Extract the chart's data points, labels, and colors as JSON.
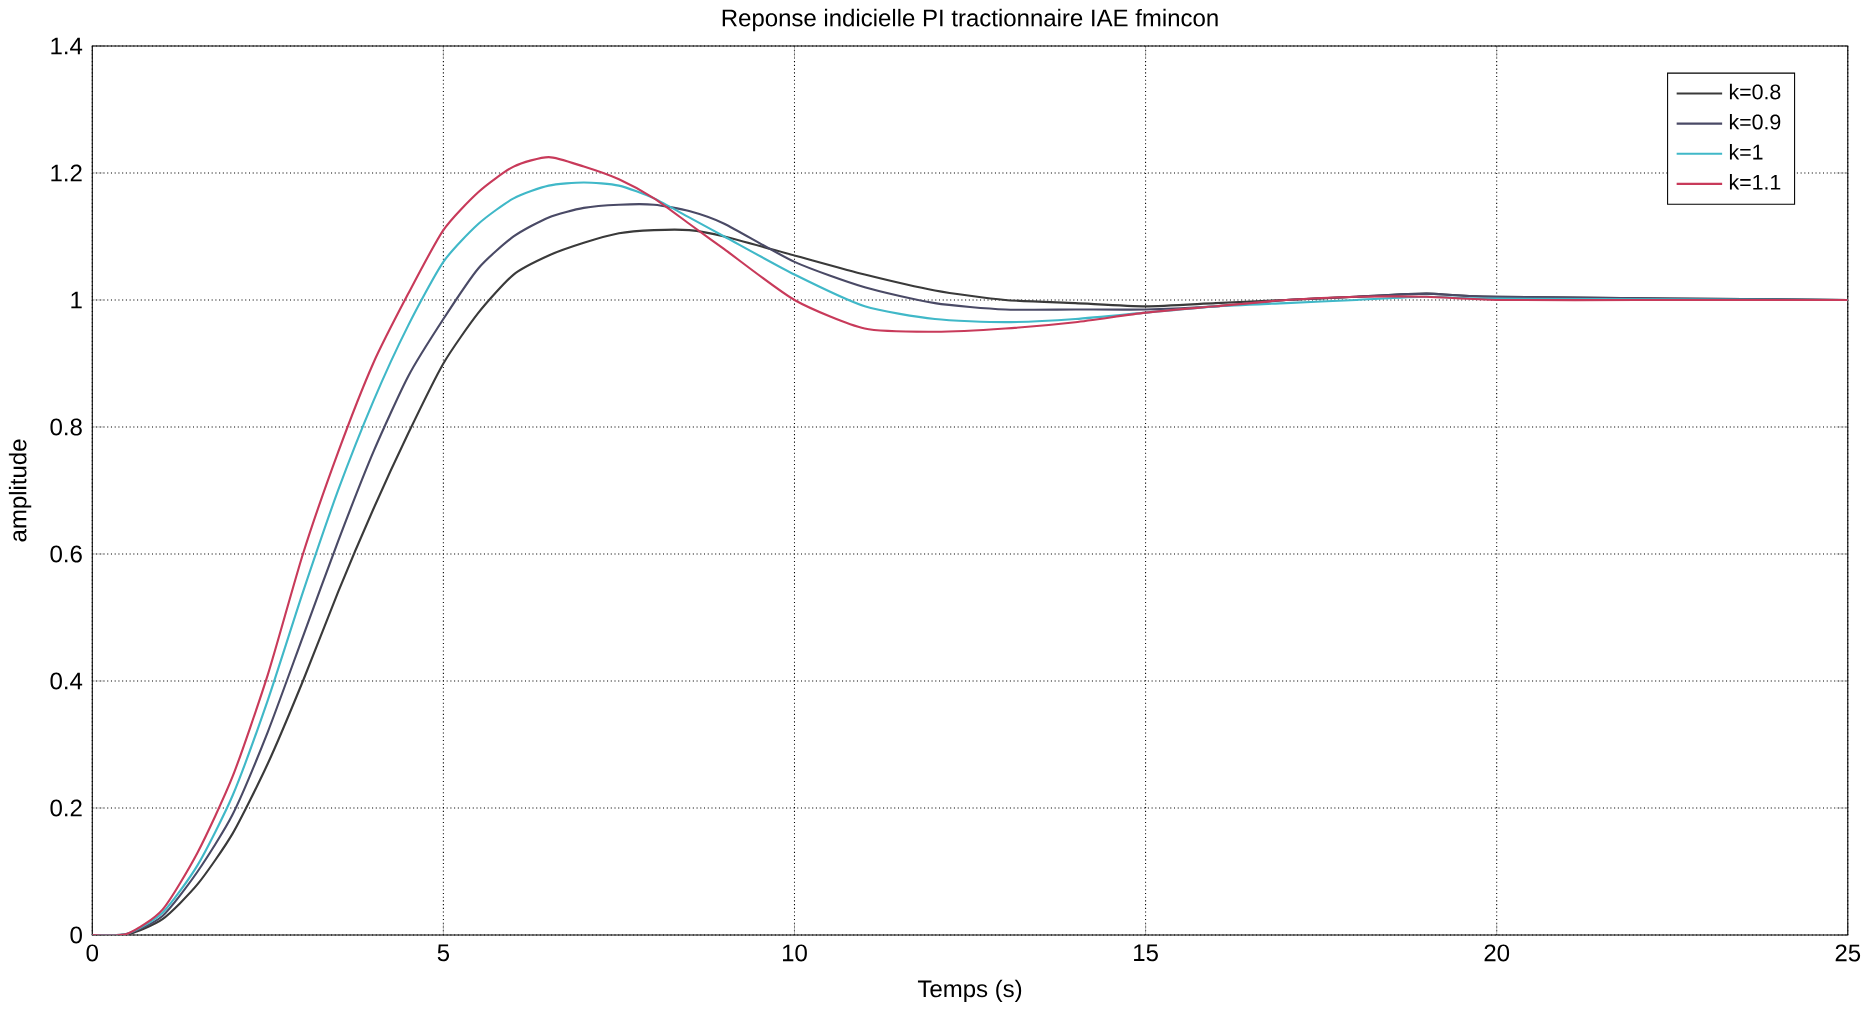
{
  "chart_data": {
    "type": "line",
    "title": "Reponse indicielle  PI tractionnaire  IAE fmincon",
    "xlabel": "Temps (s)",
    "ylabel": "amplitude",
    "x": [
      0,
      0.5,
      1,
      1.5,
      2,
      2.5,
      3,
      3.5,
      4,
      4.5,
      5,
      5.5,
      6,
      6.5,
      7,
      7.5,
      8,
      8.5,
      9,
      10,
      11,
      12,
      13,
      14,
      15,
      16,
      17,
      18,
      19,
      20,
      22,
      25
    ],
    "xlim": [
      0,
      25
    ],
    "ylim": [
      0,
      1.4
    ],
    "xticks": [
      0,
      5,
      10,
      15,
      20,
      25
    ],
    "yticks": [
      0,
      0.2,
      0.4,
      0.6,
      0.8,
      1,
      1.2,
      1.4
    ],
    "grid": true,
    "legend": "top right",
    "line_style": "solid",
    "marker": "none",
    "series": [
      {
        "name": "k=0.8",
        "color": "#3a3a3a",
        "values": [
          0,
          0.001,
          0.025,
          0.08,
          0.16,
          0.27,
          0.4,
          0.54,
          0.67,
          0.79,
          0.9,
          0.98,
          1.04,
          1.07,
          1.09,
          1.105,
          1.11,
          1.11,
          1.1,
          1.07,
          1.04,
          1.015,
          1.0,
          0.995,
          0.99,
          0.995,
          1.0,
          1.005,
          1.01,
          1.005,
          null,
          1.0
        ]
      },
      {
        "name": "k=0.9",
        "color": "#4a4a66",
        "values": [
          0,
          0.002,
          0.03,
          0.1,
          0.19,
          0.32,
          0.47,
          0.62,
          0.76,
          0.88,
          0.97,
          1.05,
          1.1,
          1.13,
          1.145,
          1.15,
          1.15,
          1.14,
          1.12,
          1.06,
          1.02,
          0.995,
          0.985,
          0.985,
          0.985,
          0.99,
          1.0,
          1.005,
          1.01,
          1.005,
          null,
          1.0
        ]
      },
      {
        "name": "k=1",
        "color": "#40b8c8",
        "values": [
          0,
          0.002,
          0.035,
          0.11,
          0.22,
          0.37,
          0.54,
          0.7,
          0.84,
          0.96,
          1.06,
          1.12,
          1.16,
          1.18,
          1.185,
          1.18,
          1.16,
          1.13,
          1.1,
          1.04,
          0.99,
          0.97,
          0.965,
          0.97,
          0.98,
          0.99,
          0.995,
          1.0,
          1.005,
          1.002,
          null,
          1.0
        ]
      },
      {
        "name": "k=1.1",
        "color": "#c83a5a",
        "values": [
          0,
          0.002,
          0.04,
          0.13,
          0.25,
          0.41,
          0.6,
          0.76,
          0.9,
          1.01,
          1.11,
          1.17,
          1.21,
          1.225,
          1.21,
          1.19,
          1.16,
          1.12,
          1.08,
          1.0,
          0.955,
          0.95,
          0.955,
          0.965,
          0.98,
          0.99,
          1.0,
          1.005,
          1.005,
          1.0,
          1.0,
          1.0
        ]
      }
    ]
  }
}
